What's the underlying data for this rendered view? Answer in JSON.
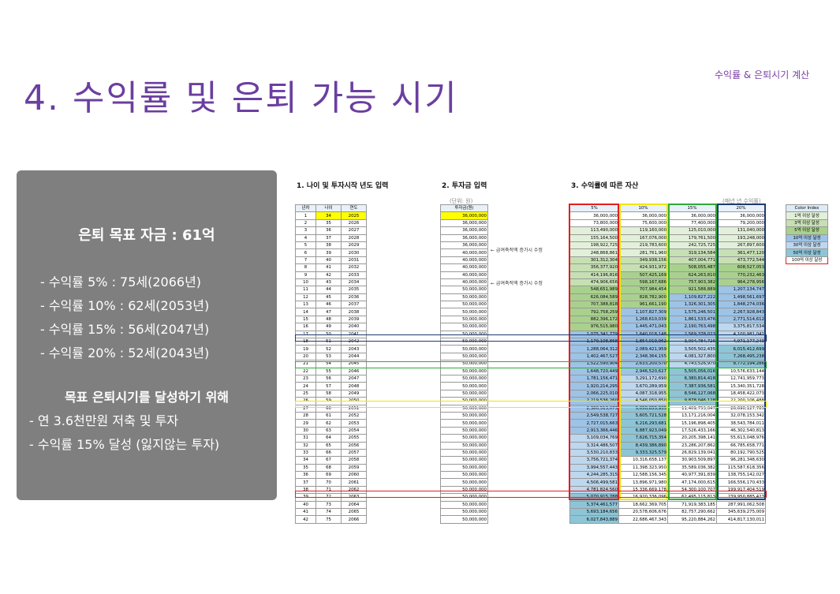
{
  "title": "4. 수익률 및 은퇴 가능 시기",
  "topright": "수익률 & 은퇴시기 계산",
  "left_panel": {
    "goal": "은퇴 목표 자금 : 61억",
    "rates": [
      "- 수익률    5% : 75세(2066년)",
      "- 수익률 10% : 62세(2053년)",
      "- 수익률 15% : 56세(2047년)",
      "- 수익률 20% : 52세(2043년)"
    ],
    "target_heading": "목표 은퇴시기를 달성하기 위해",
    "target_items": [
      "- 연 3.6천만원 저축 및 투자",
      "- 수익률 15% 달성 (잃지않는 투자)"
    ]
  },
  "sections": {
    "s1": "1. 나이 및 투자시작 년도 입력",
    "s2": "2. 투자금 입력",
    "s3": "3. 수익률에 따른 자산",
    "unit_left": "(단위: 원)",
    "unit_right": "(매년 년 수익률)"
  },
  "table": {
    "headers_a": [
      "년차",
      "나이",
      "연도"
    ],
    "header_b": "투자금(원)",
    "headers_c": [
      "5%",
      "10%",
      "15%",
      "20%"
    ],
    "note1": "← 급여축적액 증가시 수정",
    "note2": "← 급여축적액 증가시 수정",
    "invest": [
      "36,000,000",
      "36,000,000",
      "36,000,000",
      "36,000,000",
      "36,000,000",
      "40,000,000",
      "40,000,000",
      "40,000,000",
      "40,000,000",
      "40,000,000",
      "50,000,000",
      "50,000,000",
      "50,000,000",
      "50,000,000",
      "50,000,000",
      "50,000,000",
      "50,000,000",
      "50,000,000",
      "50,000,000",
      "50,000,000",
      "50,000,000",
      "50,000,000",
      "50,000,000",
      "50,000,000",
      "50,000,000",
      "50,000,000",
      "50,000,000",
      "50,000,000",
      "50,000,000",
      "50,000,000",
      "50,000,000",
      "50,000,000",
      "50,000,000",
      "50,000,000",
      "50,000,000",
      "50,000,000",
      "50,000,000",
      "50,000,000",
      "50,000,000",
      "50,000,000",
      "50,000,000",
      "50,000,000"
    ],
    "r5": [
      "36,000,000",
      "73,800,000",
      "113,490,000",
      "155,164,500",
      "198,922,725",
      "248,868,861",
      "301,312,304",
      "356,377,920",
      "414,196,816",
      "474,906,656",
      "548,651,989",
      "626,084,589",
      "707,388,818",
      "792,758,259",
      "882,396,172",
      "976,515,980",
      "1,075,341,779",
      "1,179,108,868",
      "1,288,064,312",
      "1,402,467,527",
      "1,522,590,904",
      "1,648,720,449",
      "1,781,156,471",
      "1,920,214,295",
      "2,066,225,010",
      "2,219,536,260",
      "2,380,513,073",
      "2,549,538,727",
      "2,727,015,663",
      "2,913,366,446",
      "3,109,034,769",
      "3,314,486,507",
      "3,530,210,833",
      "3,756,721,374",
      "3,994,557,443",
      "4,244,285,315",
      "4,506,499,581",
      "4,781,824,560",
      "5,070,915,788",
      "5,374,461,577",
      "5,693,184,656",
      "6,027,843,889"
    ],
    "r10": [
      "36,000,000",
      "75,600,000",
      "119,160,000",
      "167,076,000",
      "219,783,600",
      "281,761,960",
      "349,938,156",
      "424,931,972",
      "507,425,169",
      "598,167,686",
      "707,984,454",
      "828,782,900",
      "961,661,190",
      "1,107,827,309",
      "1,268,610,039",
      "1,445,471,043",
      "1,640,018,148",
      "1,854,019,962",
      "2,089,421,959",
      "2,348,364,155",
      "2,633,200,570",
      "2,946,520,627",
      "3,291,172,690",
      "3,670,289,959",
      "4,087,318,955",
      "4,546,050,850",
      "5,050,655,935",
      "5,605,721,528",
      "6,216,293,681",
      "6,887,923,049",
      "7,626,715,354",
      "8,439,386,890",
      "9,333,325,579",
      "10,316,658,137",
      "11,398,323,950",
      "12,588,156,345",
      "13,896,971,980",
      "15,336,669,178",
      "16,920,336,096",
      "18,662,369,705",
      "20,578,606,676",
      "22,686,467,343"
    ],
    "r15": [
      "36,000,000",
      "77,400,000",
      "125,010,000",
      "179,761,500",
      "242,725,725",
      "319,134,584",
      "407,004,771",
      "508,055,487",
      "624,263,810",
      "757,903,382",
      "921,588,889",
      "1,109,827,222",
      "1,326,301,305",
      "1,575,246,501",
      "1,861,533,476",
      "2,190,763,498",
      "2,569,378,023",
      "3,004,784,726",
      "3,505,502,435",
      "4,081,327,800",
      "4,743,526,970",
      "5,505,056,016",
      "6,380,814,418",
      "7,387,936,581",
      "8,546,127,068",
      "9,878,046,128",
      "11,409,753,047",
      "13,171,216,004",
      "15,196,898,405",
      "17,526,433,166",
      "20,205,398,141",
      "23,286,207,862",
      "26,829,139,041",
      "30,903,509,897",
      "35,589,036,382",
      "40,977,391,839",
      "47,174,000,615",
      "54,300,100,707",
      "62,495,115,813",
      "71,919,383,185",
      "82,757,290,662",
      "95,220,884,262"
    ],
    "r20": [
      "36,000,000",
      "79,200,000",
      "131,040,000",
      "193,248,000",
      "267,897,600",
      "361,477,120",
      "473,772,544",
      "608,527,053",
      "770,232,463",
      "964,278,956",
      "1,207,134,747",
      "1,498,561,697",
      "1,848,274,036",
      "2,267,928,843",
      "2,771,514,612",
      "3,375,817,534",
      "4,100,981,041",
      "4,971,177,249",
      "6,015,412,699",
      "7,268,495,238",
      "8,772,194,286",
      "10,576,633,144",
      "12,741,959,773",
      "15,340,351,728",
      "18,458,422,073",
      "22,200,106,488",
      "26,690,127,785",
      "32,078,153,342",
      "38,543,784,011",
      "46,302,540,813",
      "55,613,048,976",
      "66,785,658,771",
      "80,192,790,525",
      "96,281,348,630",
      "115,587,618,356",
      "138,755,142,027",
      "166,556,170,433",
      "199,917,404,519",
      "239,950,885,423",
      "287,991,062,508",
      "345,639,275,009",
      "414,817,130,011"
    ],
    "invest_highlight": "36,000,000"
  },
  "color_index": {
    "title": "Color Index",
    "items": [
      "1억 이상 달성",
      "3억 이상 달성",
      "5억 이상 달성",
      "10억 이상 달성",
      "30억 이상 달성",
      "50억 이상 달성",
      "100억 이상 달성"
    ],
    "colors": [
      "#e2f0d9",
      "#c6e0b4",
      "#a9d18e",
      "#9dc3e6",
      "#bdd7ee",
      "#8ec5d6",
      "#ffffff"
    ]
  },
  "colors": {
    "title": "#6b3fa0",
    "panel": "#7f7f7f",
    "red_box": "#e02020",
    "yellow_box": "#f2e600",
    "green_box": "#2eaa3a",
    "navy_box": "#1f3a6e"
  }
}
